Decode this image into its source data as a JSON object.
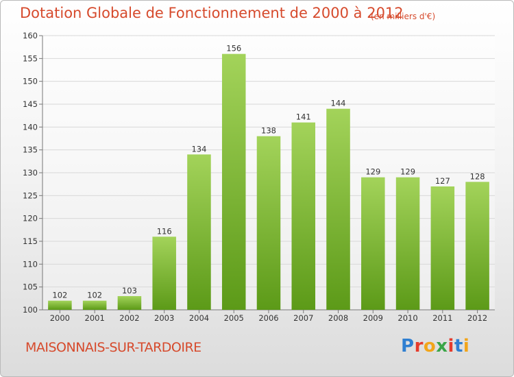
{
  "header": {
    "title": "Dotation Globale de Fonctionnement de 2000 à 2012",
    "unit": "(en milliers d'€)"
  },
  "footer": {
    "commune": "MAISONNAIS-SUR-TARDOIRE",
    "logo_letters": [
      "P",
      "r",
      "o",
      "x",
      "i",
      "t",
      "i"
    ]
  },
  "colors": {
    "title": "#d64a2c",
    "bar_top": "#a3d35a",
    "bar_bottom": "#5c9a18",
    "logo": [
      "#2f7fd1",
      "#e53b2c",
      "#f2a51a",
      "#3aa547",
      "#e53b2c",
      "#2f7fd1",
      "#f2a51a"
    ]
  },
  "chart_data": {
    "type": "bar",
    "categories": [
      "2000",
      "2001",
      "2002",
      "2003",
      "2004",
      "2005",
      "2006",
      "2007",
      "2008",
      "2009",
      "2010",
      "2011",
      "2012"
    ],
    "values": [
      102,
      102,
      103,
      116,
      134,
      156,
      138,
      141,
      144,
      129,
      129,
      127,
      128
    ],
    "title": "Dotation Globale de Fonctionnement de 2000 à 2012",
    "subtitle": "(en milliers d'€)",
    "xlabel": "",
    "ylabel": "",
    "ylim": [
      100,
      160
    ],
    "yticks": [
      100,
      105,
      110,
      115,
      120,
      125,
      130,
      135,
      140,
      145,
      150,
      155,
      160
    ],
    "grid": true,
    "legend": "none"
  }
}
